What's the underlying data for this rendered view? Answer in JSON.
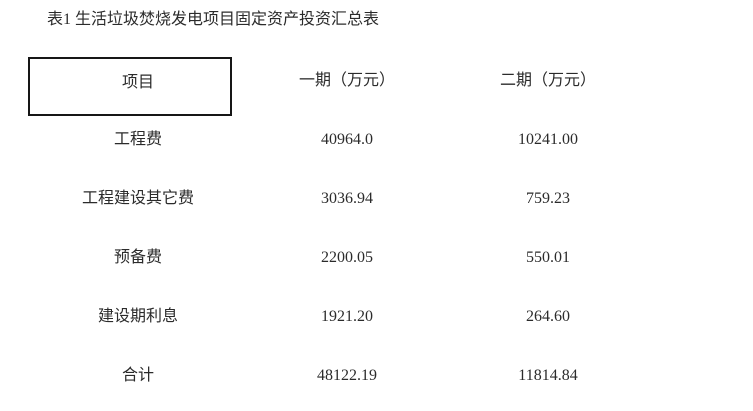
{
  "page": {
    "title": "表1 生活垃圾焚烧发电项目固定资产投资汇总表"
  },
  "table": {
    "columns": [
      "项目",
      "一期（万元）",
      "二期（万元）"
    ],
    "rows": [
      {
        "item": "工程费",
        "phase1": "40964.0",
        "phase2": "10241.00"
      },
      {
        "item": "工程建设其它费",
        "phase1": "3036.94",
        "phase2": "759.23"
      },
      {
        "item": "预备费",
        "phase1": "2200.05",
        "phase2": "550.01"
      },
      {
        "item": "建设期利息",
        "phase1": "1921.20",
        "phase2": "264.60"
      },
      {
        "item": "合计",
        "phase1": "48122.19",
        "phase2": "11814.84"
      }
    ]
  },
  "colors": {
    "background": "#ffffff",
    "text": "#2b2b2b",
    "header_box_border": "#161616"
  }
}
